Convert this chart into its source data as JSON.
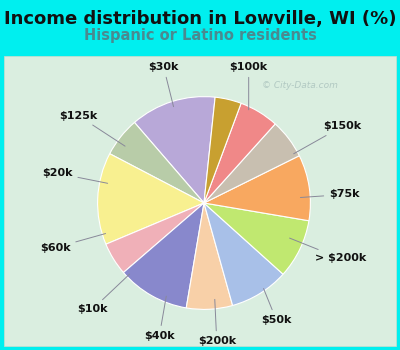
{
  "title": "Income distribution in Lowville, WI (%)",
  "subtitle": "Hispanic or Latino residents",
  "watermark": "© City-Data.com",
  "background_outer": "#00EFEF",
  "background_inner_top": "#e0f0ec",
  "background_inner_bottom": "#d8eed8",
  "labels": [
    "$100k",
    "$150k",
    "$75k",
    "> $200k",
    "$50k",
    "$200k",
    "$40k",
    "$10k",
    "$60k",
    "$20k",
    "$125k",
    "$30k"
  ],
  "values": [
    13,
    6,
    14,
    5,
    11,
    7,
    9,
    9,
    10,
    6,
    6,
    4
  ],
  "colors": [
    "#b8a8d8",
    "#b8cca8",
    "#f8f090",
    "#f0b0b8",
    "#8888cc",
    "#f8d0a8",
    "#a8c0e8",
    "#c0e870",
    "#f8a860",
    "#c8bfb0",
    "#f08888",
    "#c8a030"
  ],
  "title_fontsize": 13,
  "subtitle_fontsize": 10.5,
  "label_fontsize": 8,
  "startangle": 84
}
